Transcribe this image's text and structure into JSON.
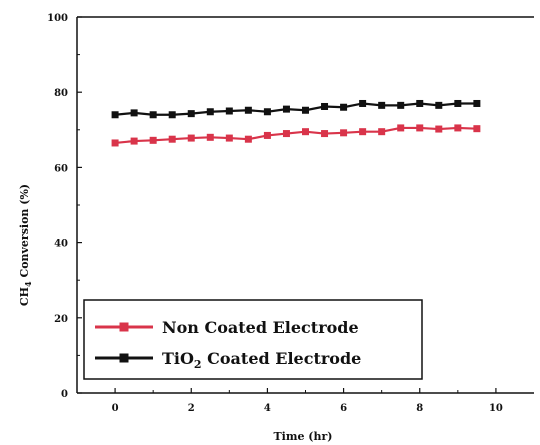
{
  "chart_data": {
    "type": "line",
    "xlabel": "Time (hr)",
    "ylabel": "CH4 Conversion (%)",
    "ylabel_main": "CH",
    "ylabel_sub": "4",
    "ylabel_rest": " Conversion (%)",
    "xlim": [
      -1,
      11
    ],
    "ylim": [
      0,
      100
    ],
    "xticks": [
      0,
      2,
      4,
      6,
      8,
      10
    ],
    "yticks": [
      0,
      20,
      40,
      60,
      80,
      100
    ],
    "grid": false,
    "legend_position": "bottom-left",
    "x": [
      0,
      0.5,
      1,
      1.5,
      2,
      2.5,
      3,
      3.5,
      4,
      4.5,
      5,
      5.5,
      6,
      6.5,
      7,
      7.5,
      8,
      8.5,
      9,
      9.5
    ],
    "series": [
      {
        "name": "Non Coated Electrode",
        "name_main": "Non Coated Electrode",
        "name_sub": "",
        "name_rest": "",
        "color": "#d9344a",
        "values": [
          66.5,
          67.0,
          67.2,
          67.5,
          67.8,
          68.0,
          67.8,
          67.5,
          68.5,
          69.0,
          69.5,
          69.0,
          69.2,
          69.5,
          69.5,
          70.5,
          70.5,
          70.2,
          70.5,
          70.3
        ]
      },
      {
        "name": "TiO2 Coated Electrode",
        "name_main": "TiO",
        "name_sub": "2",
        "name_rest": " Coated Electrode",
        "color": "#111111",
        "values": [
          74.0,
          74.5,
          74.0,
          74.0,
          74.3,
          74.8,
          75.0,
          75.2,
          74.8,
          75.5,
          75.2,
          76.2,
          76.0,
          77.0,
          76.5,
          76.5,
          77.0,
          76.5,
          77.0,
          77.0
        ]
      }
    ]
  }
}
